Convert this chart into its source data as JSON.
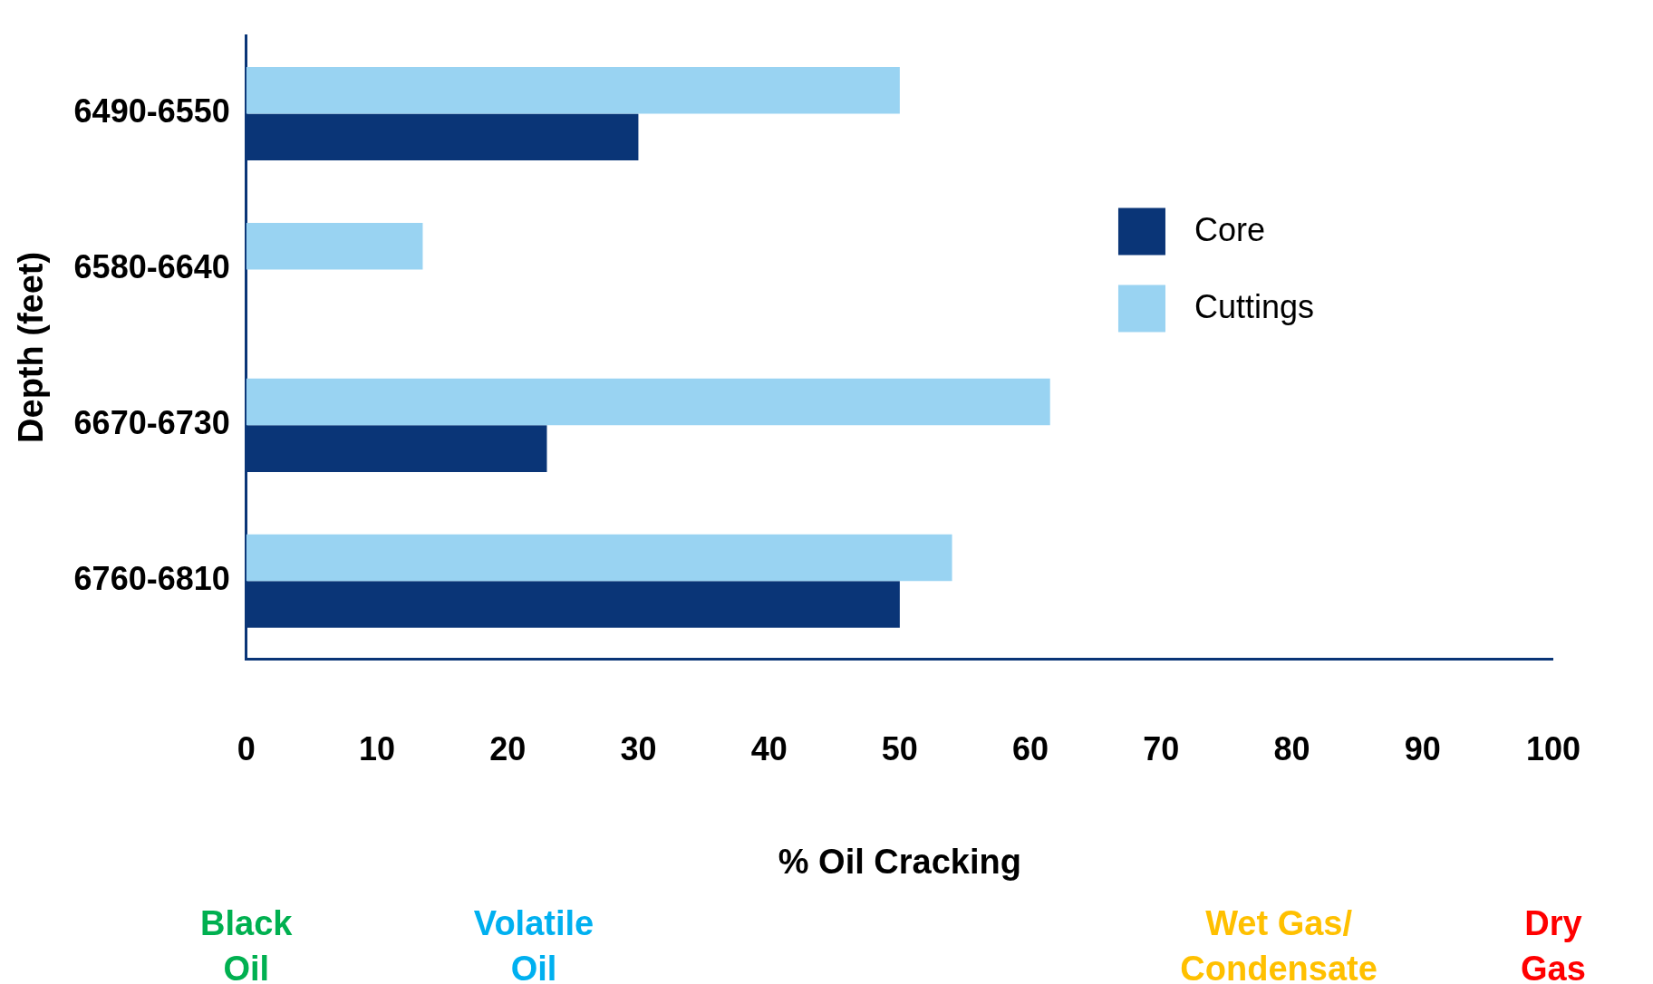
{
  "chart_data": {
    "type": "bar",
    "orientation": "horizontal",
    "xlabel": "% Oil Cracking",
    "ylabel": "Depth (feet)",
    "categories": [
      "6490-6550",
      "6580-6640",
      "6670-6730",
      "6760-6810"
    ],
    "series": [
      {
        "name": "Cuttings",
        "color": "#99d3f2",
        "values": [
          50,
          13.5,
          61.5,
          54
        ]
      },
      {
        "name": "Core",
        "color": "#0a3577",
        "values": [
          30,
          null,
          23,
          50
        ]
      }
    ],
    "xlim": [
      0,
      100
    ],
    "xticks": [
      0,
      10,
      20,
      30,
      40,
      50,
      60,
      70,
      80,
      90,
      100
    ],
    "grid": false,
    "legend": "top right",
    "annotations": [
      "Black Oil",
      "Volatile Oil",
      "Wet Gas/ Condensate",
      "Dry Gas"
    ]
  }
}
